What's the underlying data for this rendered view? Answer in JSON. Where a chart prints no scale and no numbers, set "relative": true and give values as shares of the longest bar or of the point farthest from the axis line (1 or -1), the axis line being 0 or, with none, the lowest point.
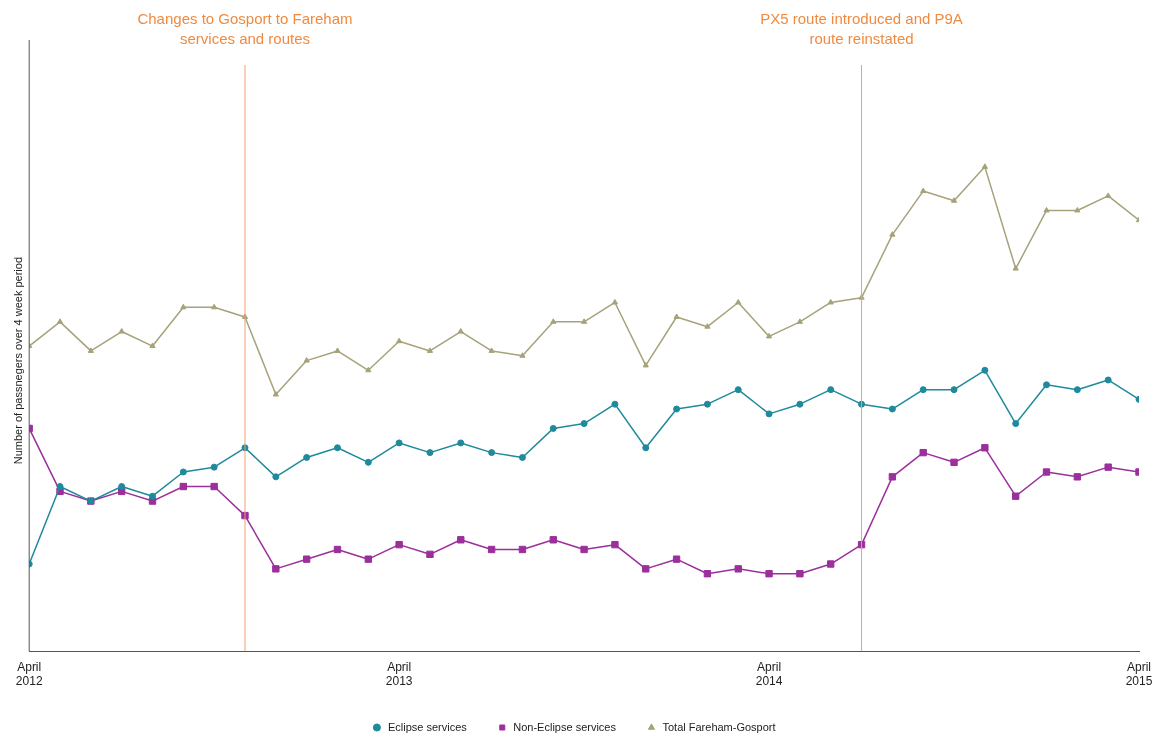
{
  "chart_data": {
    "type": "line",
    "relative": true,
    "ylabel": "Number of passnegers over 4 week period",
    "x": [
      "2012-04",
      "2012-05",
      "2012-06",
      "2012-07",
      "2012-08",
      "2012-09",
      "2012-10",
      "2012-11",
      "2012-12",
      "2013-01",
      "2013-02",
      "2013-03",
      "2013-04",
      "2013-05",
      "2013-06",
      "2013-07",
      "2013-08",
      "2013-09",
      "2013-10",
      "2013-11",
      "2013-12",
      "2014-01",
      "2014-02",
      "2014-03",
      "2014-04",
      "2014-05",
      "2014-06",
      "2014-07",
      "2014-08",
      "2014-09",
      "2014-10",
      "2014-11",
      "2014-12",
      "2015-01",
      "2015-02",
      "2015-03",
      "2015-04"
    ],
    "xlim": [
      "2012-04",
      "2015-04"
    ],
    "xticks": [
      {
        "value": "2012-04",
        "label": "April 2012"
      },
      {
        "value": "2013-04",
        "label": "April 2013"
      },
      {
        "value": "2014-04",
        "label": "April 2014"
      },
      {
        "value": "2015-04",
        "label": "April 2015"
      }
    ],
    "series": [
      {
        "name": "Eclipse services",
        "color": "#1f8a9c",
        "marker": "circle",
        "values": [
          0.18,
          0.34,
          0.31,
          0.34,
          0.32,
          0.37,
          0.38,
          0.42,
          0.36,
          0.4,
          0.42,
          0.39,
          0.43,
          0.41,
          0.43,
          0.41,
          0.4,
          0.46,
          0.47,
          0.51,
          0.42,
          0.5,
          0.51,
          0.54,
          0.49,
          0.51,
          0.54,
          0.51,
          0.5,
          0.54,
          0.54,
          0.58,
          0.47,
          0.55,
          0.54,
          0.56,
          0.52
        ]
      },
      {
        "name": "Non-Eclipse services",
        "color": "#9b2f9b",
        "marker": "square",
        "values": [
          0.46,
          0.33,
          0.31,
          0.33,
          0.31,
          0.34,
          0.34,
          0.28,
          0.17,
          0.19,
          0.21,
          0.19,
          0.22,
          0.2,
          0.23,
          0.21,
          0.21,
          0.23,
          0.21,
          0.22,
          0.17,
          0.19,
          0.16,
          0.17,
          0.16,
          0.16,
          0.18,
          0.22,
          0.36,
          0.41,
          0.39,
          0.42,
          0.32,
          0.37,
          0.36,
          0.38,
          0.37
        ]
      },
      {
        "name": "Total Fareham-Gosport",
        "color": "#a6a27a",
        "marker": "triangle",
        "values": [
          0.63,
          0.68,
          0.62,
          0.66,
          0.63,
          0.71,
          0.71,
          0.69,
          0.53,
          0.6,
          0.62,
          0.58,
          0.64,
          0.62,
          0.66,
          0.62,
          0.61,
          0.68,
          0.68,
          0.72,
          0.59,
          0.69,
          0.67,
          0.72,
          0.65,
          0.68,
          0.72,
          0.73,
          0.86,
          0.95,
          0.93,
          1,
          0.79,
          0.91,
          0.91,
          0.94,
          0.89
        ]
      }
    ],
    "ref_lines": [
      {
        "axis": "x",
        "value": "2012-11",
        "label": "Changes to Gosport to Fareham services and routes",
        "color": "#f0a070"
      },
      {
        "axis": "x",
        "value": "2014-07",
        "label": "PX5 route introduced and P9A route reinstated",
        "color": "#f0a070"
      }
    ],
    "legend": "bottom",
    "grid": false,
    "line_style": "solid"
  }
}
